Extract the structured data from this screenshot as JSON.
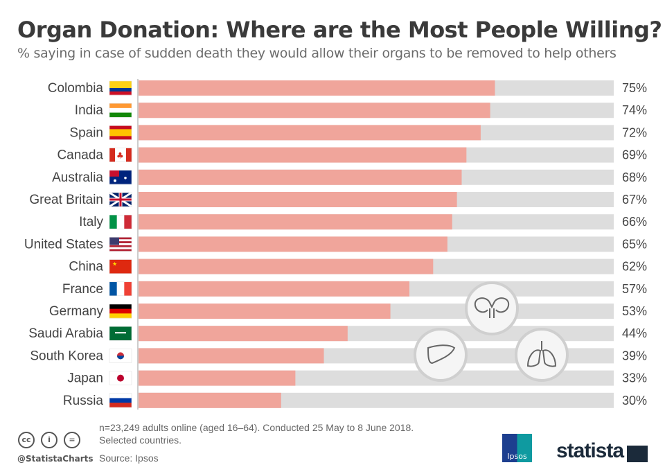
{
  "header": {
    "title": "Organ Donation: Where are the Most People Willing?",
    "subtitle": "% saying in case of sudden death they would allow their organs to be removed to help others"
  },
  "chart_data": {
    "type": "bar",
    "orientation": "horizontal",
    "xlim": [
      0,
      100
    ],
    "value_suffix": "%",
    "bar_color": "#f0a59b",
    "track_color": "#dddddd",
    "categories": [
      "Colombia",
      "India",
      "Spain",
      "Canada",
      "Australia",
      "Great Britain",
      "Italy",
      "United States",
      "China",
      "France",
      "Germany",
      "Saudi Arabia",
      "South Korea",
      "Japan",
      "Russia"
    ],
    "values": [
      75,
      74,
      72,
      69,
      68,
      67,
      66,
      65,
      62,
      57,
      53,
      44,
      39,
      33,
      30
    ],
    "labels": [
      "75%",
      "74%",
      "72%",
      "69%",
      "68%",
      "67%",
      "66%",
      "65%",
      "62%",
      "57%",
      "53%",
      "44%",
      "39%",
      "33%",
      "30%"
    ],
    "icons": [
      "kidneys-icon",
      "liver-icon",
      "lungs-icon"
    ]
  },
  "footer": {
    "note": "n=23,249 adults online (aged 16–64). Conducted 25 May to 8 June 2018.",
    "note2": "Selected countries.",
    "source": "Source: Ipsos",
    "handle": "@StatistaCharts",
    "ipsos": "Ipsos",
    "brand": "statista"
  }
}
